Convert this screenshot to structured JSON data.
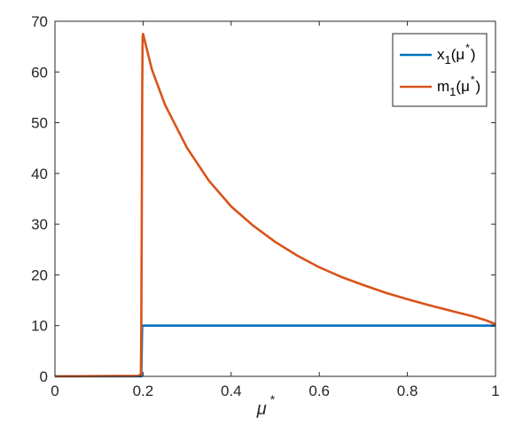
{
  "chart_data": {
    "type": "line",
    "xlabel": "μ",
    "xlabel_sup": "*",
    "xlim": [
      0,
      1
    ],
    "ylim": [
      0,
      70
    ],
    "xticks": [
      0,
      0.2,
      0.4,
      0.6,
      0.8,
      1
    ],
    "xtick_labels": [
      "0",
      "0.2",
      "0.4",
      "0.6",
      "0.8",
      "1"
    ],
    "yticks": [
      0,
      10,
      20,
      30,
      40,
      50,
      60,
      70
    ],
    "ytick_labels": [
      "0",
      "10",
      "20",
      "30",
      "40",
      "50",
      "60",
      "70"
    ],
    "grid": false,
    "legend_position": "top-right",
    "series": [
      {
        "name": "x",
        "name_sub": "1",
        "name_arg": "(μ",
        "name_sup": "*",
        "name_close": ")",
        "color": "#0072BD",
        "x": [
          0,
          0.195,
          0.196,
          0.198,
          0.2,
          1
        ],
        "y": [
          0,
          0,
          0,
          10,
          10,
          10
        ]
      },
      {
        "name": "m",
        "name_sub": "1",
        "name_arg": "(μ",
        "name_sup": "*",
        "name_close": ")",
        "color": "#D95319",
        "x": [
          0,
          0.19,
          0.195,
          0.196,
          0.197,
          0.198,
          0.199,
          0.2,
          0.22,
          0.25,
          0.3,
          0.35,
          0.4,
          0.45,
          0.5,
          0.55,
          0.6,
          0.65,
          0.7,
          0.75,
          0.8,
          0.85,
          0.9,
          0.95,
          0.98,
          1.0
        ],
        "y": [
          0,
          0.1,
          0.5,
          10,
          30,
          55,
          67,
          67.5,
          60.5,
          53.5,
          45,
          38.5,
          33.5,
          29.7,
          26.5,
          23.8,
          21.5,
          19.6,
          18,
          16.5,
          15.2,
          14,
          12.9,
          11.8,
          11,
          10.3
        ]
      }
    ]
  }
}
